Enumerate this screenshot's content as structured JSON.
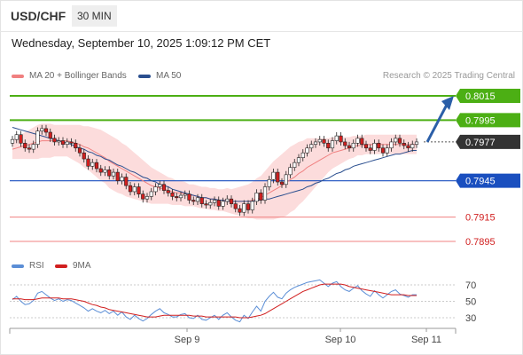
{
  "header": {
    "symbol": "USD/CHF",
    "timeframe": "30 MIN"
  },
  "datetime": "Wednesday, September 10, 2025 1:09:12 PM CET",
  "legend": {
    "ma20": "MA 20 + Bollinger Bands",
    "ma50": "MA 50",
    "rsi": "RSI",
    "rsi_ma": "9MA"
  },
  "credit": "Research © 2025 Trading Central",
  "colors": {
    "ma20": "#f08080",
    "ma50": "#2b4f8f",
    "bollinger_fill": "#fcdcdc",
    "green_level": "#4caf14",
    "blue_level": "#1a4fbf",
    "red_level": "#f08080",
    "candle_up": "#ffffff",
    "candle_down": "#d11f1f",
    "rsi": "#5b8ed6",
    "rsi_ma": "#d11f1f",
    "arrow": "#2b5fa8"
  },
  "chart_data": [
    {
      "type": "candlestick",
      "x_ticks": [
        "Sep 9",
        "Sep 10",
        "Sep 11"
      ],
      "levels": [
        {
          "value": 0.8015,
          "label": "0.8015",
          "style": "green"
        },
        {
          "value": 0.7995,
          "label": "0.7995",
          "style": "green"
        },
        {
          "value": 0.7977,
          "label": "0.7977",
          "style": "current"
        },
        {
          "value": 0.7945,
          "label": "0.7945",
          "style": "blue"
        },
        {
          "value": 0.7915,
          "label": "0.7915",
          "style": "red"
        },
        {
          "value": 0.7895,
          "label": "0.7895",
          "style": "red"
        }
      ],
      "close": [
        0.7979,
        0.7983,
        0.7976,
        0.7972,
        0.7971,
        0.7975,
        0.7986,
        0.7988,
        0.7985,
        0.798,
        0.7977,
        0.7978,
        0.7975,
        0.7977,
        0.7976,
        0.7972,
        0.7968,
        0.7963,
        0.7957,
        0.796,
        0.7955,
        0.7952,
        0.7954,
        0.7949,
        0.7952,
        0.7945,
        0.7948,
        0.7941,
        0.7936,
        0.794,
        0.7934,
        0.793,
        0.7932,
        0.7936,
        0.794,
        0.7942,
        0.7937,
        0.7935,
        0.7932,
        0.7931,
        0.7933,
        0.7934,
        0.7929,
        0.7928,
        0.7931,
        0.7926,
        0.7925,
        0.7927,
        0.7929,
        0.7924,
        0.7928,
        0.793,
        0.7926,
        0.7922,
        0.7919,
        0.7926,
        0.7921,
        0.7928,
        0.7935,
        0.7929,
        0.794,
        0.7946,
        0.7952,
        0.7944,
        0.7942,
        0.795,
        0.7956,
        0.796,
        0.7964,
        0.7968,
        0.7972,
        0.7975,
        0.7977,
        0.7979,
        0.7976,
        0.7972,
        0.7978,
        0.7982,
        0.7977,
        0.7974,
        0.7972,
        0.7976,
        0.798,
        0.7975,
        0.7972,
        0.797,
        0.7976,
        0.7972,
        0.7968,
        0.7972,
        0.7977,
        0.798,
        0.7976,
        0.7974,
        0.7972,
        0.7975,
        0.7977
      ],
      "ma20": [
        0.7971,
        0.7972,
        0.7973,
        0.7974,
        0.7975,
        0.7976,
        0.7977,
        0.7978,
        0.7978,
        0.7978,
        0.7978,
        0.7978,
        0.7978,
        0.7978,
        0.7977,
        0.7976,
        0.7975,
        0.7973,
        0.7972,
        0.797,
        0.7968,
        0.7966,
        0.7964,
        0.7961,
        0.7959,
        0.7957,
        0.7955,
        0.7953,
        0.7951,
        0.7949,
        0.7947,
        0.7945,
        0.7943,
        0.7941,
        0.794,
        0.7939,
        0.7938,
        0.7937,
        0.7936,
        0.7935,
        0.7935,
        0.7934,
        0.7933,
        0.7933,
        0.7932,
        0.7931,
        0.7931,
        0.793,
        0.793,
        0.7929,
        0.7929,
        0.7929,
        0.7928,
        0.7928,
        0.7928,
        0.7928,
        0.7928,
        0.7929,
        0.793,
        0.7931,
        0.7933,
        0.7935,
        0.7937,
        0.7939,
        0.7941,
        0.7943,
        0.7946,
        0.7948,
        0.7951,
        0.7953,
        0.7956,
        0.7958,
        0.796,
        0.7962,
        0.7964,
        0.7966,
        0.7968,
        0.7969,
        0.797,
        0.7971,
        0.7972,
        0.7973,
        0.7974,
        0.7974,
        0.7975,
        0.7975,
        0.7975,
        0.7975,
        0.7975,
        0.7975,
        0.7975,
        0.7975,
        0.7975,
        0.7975,
        0.7975,
        0.7975,
        0.7975
      ],
      "bb_width": [
        0.0008,
        0.0009,
        0.001,
        0.0011,
        0.0012,
        0.0013,
        0.0014,
        0.0014,
        0.0014,
        0.0014,
        0.0013,
        0.0013,
        0.0013,
        0.0013,
        0.0014,
        0.0015,
        0.0016,
        0.0017,
        0.0018,
        0.0019,
        0.002,
        0.0021,
        0.0021,
        0.0022,
        0.0022,
        0.0022,
        0.0021,
        0.0021,
        0.002,
        0.0019,
        0.0018,
        0.0017,
        0.0016,
        0.0015,
        0.0014,
        0.0013,
        0.0012,
        0.0011,
        0.0011,
        0.001,
        0.001,
        0.001,
        0.0009,
        0.0009,
        0.0009,
        0.0009,
        0.0009,
        0.0009,
        0.0009,
        0.0009,
        0.0009,
        0.001,
        0.001,
        0.0011,
        0.0012,
        0.0013,
        0.0014,
        0.0015,
        0.0017,
        0.0018,
        0.002,
        0.0022,
        0.0024,
        0.0025,
        0.0026,
        0.0027,
        0.0027,
        0.0027,
        0.0026,
        0.0025,
        0.0024,
        0.0022,
        0.002,
        0.0018,
        0.0016,
        0.0014,
        0.0013,
        0.0012,
        0.0011,
        0.001,
        0.0009,
        0.0009,
        0.0008,
        0.0008,
        0.0008,
        0.0008,
        0.0008,
        0.0008,
        0.0008,
        0.0008,
        0.0008,
        0.0008,
        0.0008,
        0.0008,
        0.0008,
        0.0008,
        0.0008
      ],
      "ma50": [
        0.7989,
        0.7988,
        0.7987,
        0.7986,
        0.7985,
        0.7984,
        0.7983,
        0.7982,
        0.7981,
        0.798,
        0.7979,
        0.7978,
        0.7977,
        0.7976,
        0.7975,
        0.7973,
        0.7972,
        0.7971,
        0.7969,
        0.7968,
        0.7966,
        0.7965,
        0.7963,
        0.7962,
        0.796,
        0.7958,
        0.7957,
        0.7955,
        0.7953,
        0.7952,
        0.795,
        0.7948,
        0.7947,
        0.7945,
        0.7944,
        0.7942,
        0.7941,
        0.794,
        0.7938,
        0.7937,
        0.7936,
        0.7935,
        0.7934,
        0.7933,
        0.7932,
        0.7931,
        0.7931,
        0.793,
        0.793,
        0.7929,
        0.7929,
        0.7928,
        0.7928,
        0.7928,
        0.7928,
        0.7928,
        0.7928,
        0.7928,
        0.7929,
        0.7929,
        0.793,
        0.793,
        0.7931,
        0.7932,
        0.7933,
        0.7934,
        0.7935,
        0.7936,
        0.7937,
        0.7938,
        0.794,
        0.7941,
        0.7943,
        0.7944,
        0.7946,
        0.7947,
        0.7949,
        0.7951,
        0.7952,
        0.7954,
        0.7955,
        0.7957,
        0.7958,
        0.7959,
        0.796,
        0.7961,
        0.7962,
        0.7963,
        0.7964,
        0.7965,
        0.7966,
        0.7967,
        0.7967,
        0.7968,
        0.7969,
        0.797,
        0.797
      ],
      "projection_arrow": {
        "from": 0.7977,
        "to": 0.8015
      }
    },
    {
      "type": "line",
      "series_names": [
        "RSI",
        "9MA"
      ],
      "y_ticks": [
        70,
        50,
        30
      ],
      "ylim": [
        20,
        80
      ],
      "rsi": [
        52,
        56,
        50,
        46,
        47,
        51,
        60,
        62,
        58,
        54,
        51,
        53,
        50,
        52,
        51,
        48,
        45,
        42,
        38,
        41,
        38,
        36,
        39,
        35,
        38,
        33,
        37,
        31,
        28,
        33,
        29,
        26,
        29,
        34,
        38,
        41,
        36,
        34,
        31,
        31,
        34,
        35,
        30,
        29,
        33,
        28,
        27,
        30,
        33,
        28,
        33,
        36,
        31,
        27,
        25,
        33,
        29,
        37,
        44,
        38,
        50,
        56,
        61,
        55,
        53,
        60,
        64,
        67,
        69,
        71,
        73,
        74,
        75,
        76,
        72,
        68,
        72,
        74,
        68,
        64,
        62,
        66,
        69,
        63,
        59,
        56,
        63,
        58,
        54,
        58,
        62,
        64,
        59,
        57,
        55,
        58,
        58
      ],
      "rsi_ma": [
        53,
        53,
        53,
        52,
        52,
        52,
        53,
        54,
        54,
        54,
        54,
        54,
        53,
        53,
        53,
        52,
        51,
        50,
        48,
        46,
        45,
        43,
        42,
        40,
        39,
        38,
        37,
        36,
        35,
        34,
        33,
        32,
        31,
        31,
        31,
        32,
        33,
        33,
        33,
        33,
        33,
        33,
        33,
        32,
        32,
        32,
        31,
        31,
        31,
        31,
        31,
        31,
        31,
        31,
        30,
        30,
        30,
        31,
        32,
        33,
        35,
        38,
        41,
        44,
        47,
        50,
        53,
        56,
        59,
        62,
        64,
        66,
        68,
        70,
        71,
        71,
        71,
        71,
        71,
        70,
        68,
        67,
        66,
        65,
        64,
        63,
        62,
        61,
        60,
        59,
        58,
        58,
        58,
        58,
        57,
        57,
        57
      ]
    }
  ]
}
